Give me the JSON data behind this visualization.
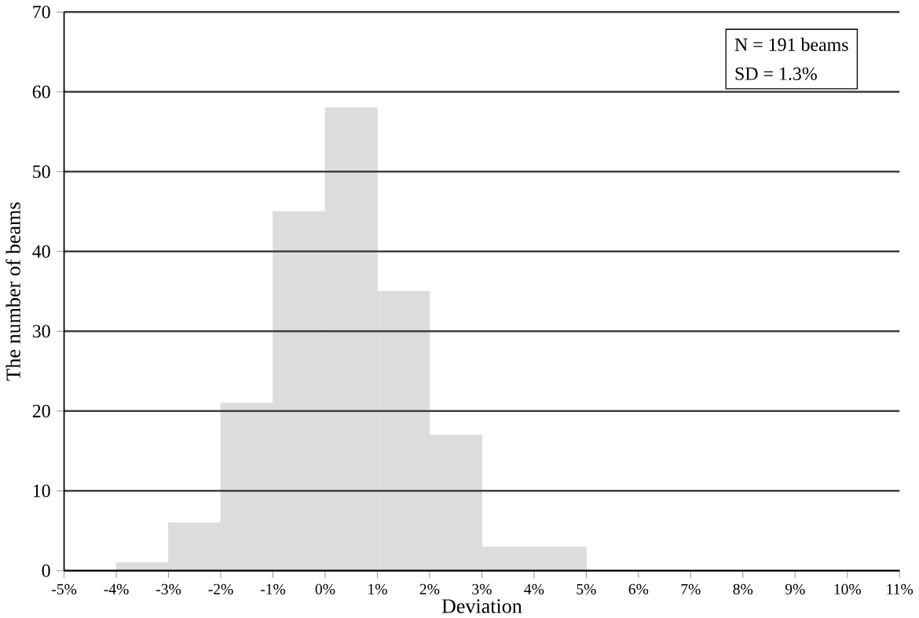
{
  "chart_data": {
    "type": "histogram",
    "xlabel": "Deviation",
    "ylabel": "The number of beams",
    "bins": [
      -5,
      -4,
      -3,
      -2,
      -1,
      0,
      1,
      2,
      3,
      4,
      5,
      6,
      7,
      8,
      9,
      10,
      11
    ],
    "values": [
      0,
      1,
      6,
      21,
      45,
      58,
      35,
      17,
      3,
      3,
      0,
      0,
      0,
      0,
      0,
      0
    ],
    "color": "#dcdcdc",
    "xlim": [
      -5,
      11
    ],
    "ylim": [
      0,
      70
    ],
    "xticks": [
      {
        "value": -5,
        "label": "-5%"
      },
      {
        "value": -4,
        "label": "-4%"
      },
      {
        "value": -3,
        "label": "-3%"
      },
      {
        "value": -2,
        "label": "-2%"
      },
      {
        "value": -1,
        "label": "-1%"
      },
      {
        "value": 0,
        "label": "0%"
      },
      {
        "value": 1,
        "label": "1%"
      },
      {
        "value": 2,
        "label": "2%"
      },
      {
        "value": 3,
        "label": "3%"
      },
      {
        "value": 4,
        "label": "4%"
      },
      {
        "value": 5,
        "label": "5%"
      },
      {
        "value": 6,
        "label": "6%"
      },
      {
        "value": 7,
        "label": "7%"
      },
      {
        "value": 8,
        "label": "8%"
      },
      {
        "value": 9,
        "label": "9%"
      },
      {
        "value": 10,
        "label": "10%"
      },
      {
        "value": 11,
        "label": "11%"
      }
    ],
    "yticks": [
      0,
      10,
      20,
      30,
      40,
      50,
      60,
      70
    ],
    "grid": "y",
    "annotations": [
      "N = 191 beams",
      "SD = 1.3%"
    ]
  }
}
